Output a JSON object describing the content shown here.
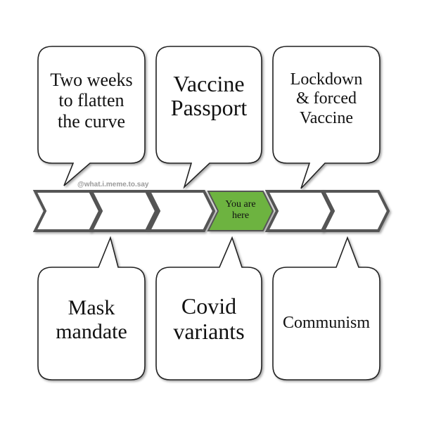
{
  "watermark": "@what.i.meme.to.say",
  "timeline": {
    "current_label": "You are\nhere",
    "current_color": "#6db33f",
    "default_color": "#ffffff",
    "stroke_color": "#555555"
  },
  "bubbles_top": [
    {
      "text": "Two weeks\nto flatten\nthe curve"
    },
    {
      "text": "Vaccine\nPassport"
    },
    {
      "text": "Lockdown\n& forced\nVaccine"
    }
  ],
  "bubbles_bottom": [
    {
      "text": "Mask\nmandate"
    },
    {
      "text": "Covid\nvariants"
    },
    {
      "text": "Communism"
    }
  ]
}
